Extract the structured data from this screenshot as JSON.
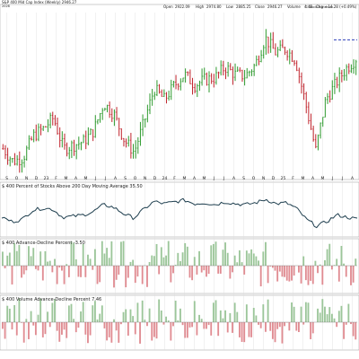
{
  "header": {
    "ticker_prefix": "$",
    "summary": {
      "open_label": "Open",
      "open_value": "2922.09",
      "high_label": "High",
      "high_value": "2974.80",
      "low_label": "Low",
      "low_value": "2885.25",
      "close_label": "Close",
      "close_value": "2946.27",
      "volume_label": "Volume",
      "volume_value": "4.4B",
      "change_label": "Chg",
      "change_value": "+14.28 (+0.49%)"
    }
  },
  "colors": {
    "up": "#2e9a2e",
    "down": "#c0232c",
    "line": "#1f3f4f",
    "bar_pos": "#9cc69a",
    "bar_neg": "#e08c92",
    "ma_dash": "#2c3fb8",
    "grid": "#dcdcdc"
  },
  "chart_data": [
    {
      "panel": "price",
      "type": "ohlc",
      "title": "S&P 400 Mid Cap Index (Weekly) 2946.27",
      "subtitle": "2026",
      "watermark": "© StockCharts.com",
      "x_labels": [
        "S",
        "O",
        "N",
        "D",
        "23",
        "F",
        "M",
        "A",
        "M",
        "J",
        "J",
        "A",
        "S",
        "O",
        "N",
        "D",
        "24",
        "F",
        "M",
        "A",
        "M",
        "J",
        "J",
        "A",
        "S",
        "O",
        "N",
        "D",
        "25",
        "F",
        "M",
        "A",
        "M",
        "J",
        "J",
        "A"
      ],
      "series_close": [
        2450,
        2380,
        2400,
        2520,
        2560,
        2620,
        2450,
        2470,
        2490,
        2550,
        2700,
        2640,
        2500,
        2430,
        2600,
        2780,
        2720,
        2800,
        2860,
        2800,
        2830,
        2840,
        2900,
        2860,
        2850,
        2910,
        3060,
        2980,
        3000,
        2940,
        2700,
        2440,
        2720,
        2810,
        2890,
        2946.27
      ],
      "last_value": 2946.27,
      "dashed_level": 3050,
      "ylim": [
        2300,
        3200
      ]
    },
    {
      "panel": "breadth",
      "type": "line",
      "title": "$ 400 Percent of Stocks Above 200 Day Moving Average 35.50",
      "values": [
        40,
        30,
        35,
        55,
        60,
        58,
        40,
        42,
        45,
        52,
        68,
        62,
        48,
        38,
        58,
        75,
        70,
        74,
        78,
        70,
        72,
        68,
        74,
        70,
        68,
        72,
        80,
        70,
        72,
        60,
        35,
        20,
        30,
        45,
        40,
        35.5
      ],
      "ylim": [
        0,
        100
      ]
    },
    {
      "panel": "ad",
      "type": "bar",
      "title": "$ 400 Advance-Decline Percent -3.50",
      "ylim": [
        -1,
        1
      ]
    },
    {
      "panel": "vad",
      "type": "bar",
      "title": "$ 400 Volume Advance-Decline Percent 7.46",
      "ylim": [
        -1,
        1
      ]
    }
  ]
}
